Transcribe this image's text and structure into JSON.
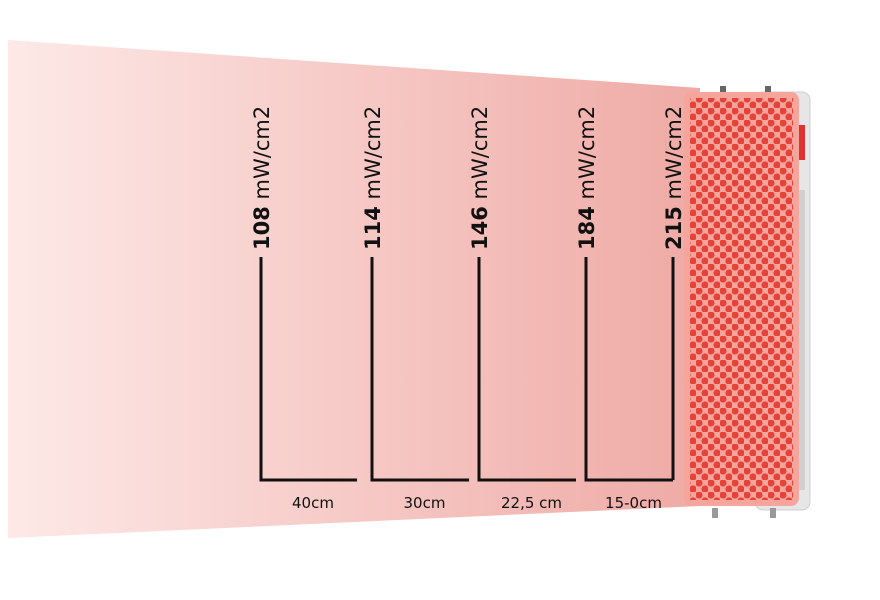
{
  "measurements": [
    {
      "irradiance": 108,
      "unit": "mW/cm2",
      "distance": "40cm"
    },
    {
      "irradiance": 114,
      "unit": "mW/cm2",
      "distance": "30cm"
    },
    {
      "irradiance": 146,
      "unit": "mW/cm2",
      "distance": "22,5 cm"
    },
    {
      "irradiance": 184,
      "unit": "mW/cm2",
      "distance": "15-0cm"
    },
    {
      "irradiance": 215,
      "unit": "mW/cm2"
    }
  ]
}
